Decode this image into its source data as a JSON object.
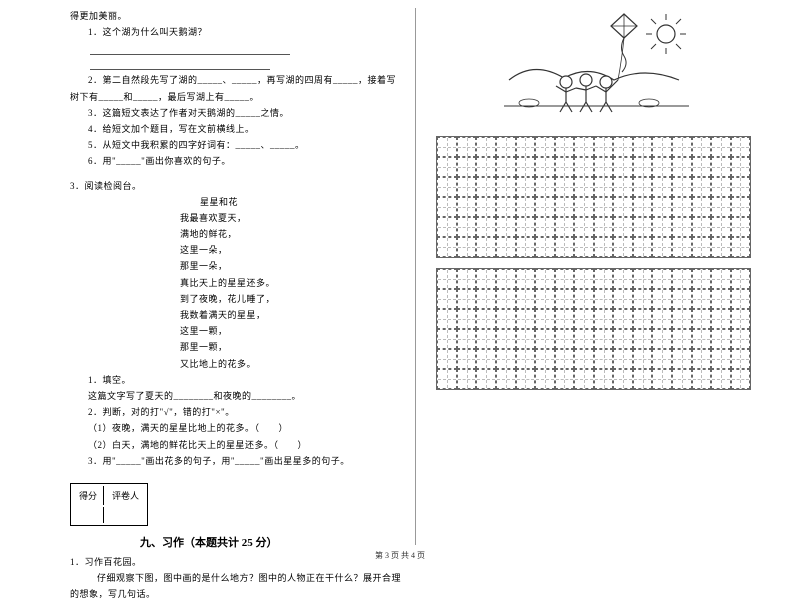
{
  "left": {
    "intro": "得更加美丽。",
    "q1": "1．这个湖为什么叫天鹅湖？",
    "q2": "2．第二自然段先写了湖的_____、_____，再写湖的四周有_____，接着写树下有_____和_____，最后写湖上有_____。",
    "q3": "3．这篇短文表达了作者对天鹅湖的_____之情。",
    "q4": "4．给短文加个题目，写在文前横线上。",
    "q5": "5．从短文中我积累的四字好词有：_____、_____。",
    "q6": "6．用\"_____\"画出你喜欢的句子。",
    "reading_title": "3．阅读检阅台。",
    "poem_title": "星星和花",
    "poem_lines": [
      "我最喜欢夏天，",
      "满地的鲜花，",
      "这里一朵，",
      "那里一朵，",
      "真比天上的星星还多。",
      "到了夜晚，花儿睡了，",
      "我数着满天的星星，",
      "这里一颗，",
      "那里一颗，",
      "又比地上的花多。"
    ],
    "sub1_title": "1．填空。",
    "sub1_line1": "这篇文字写了夏天的________和夜晚的________。",
    "sub1_line2": "2．判断，对的打\"√\"，错的打\"×\"。",
    "sub1_line3": "（1）夜晚，满天的星星比地上的花多。（　　）",
    "sub1_line4": "（2）白天，满地的鲜花比天上的星星还多。（　　）",
    "sub1_line5": "3．用\"_____\"画出花多的句子，用\"_____\"画出星星多的句子。",
    "score_label1": "得分",
    "score_label2": "评卷人",
    "section9": "九、习作（本题共计 25 分）",
    "writing_title": "1．习作百花园。",
    "writing_prompt": "仔细观察下图，图中画的是什么地方？图中的人物正在干什么？展开合理　的想象，写几句话。"
  },
  "footer": "第 3 页  共 4 页",
  "grid": {
    "sections": 2,
    "rows_per_section": 6,
    "cols": 16
  }
}
